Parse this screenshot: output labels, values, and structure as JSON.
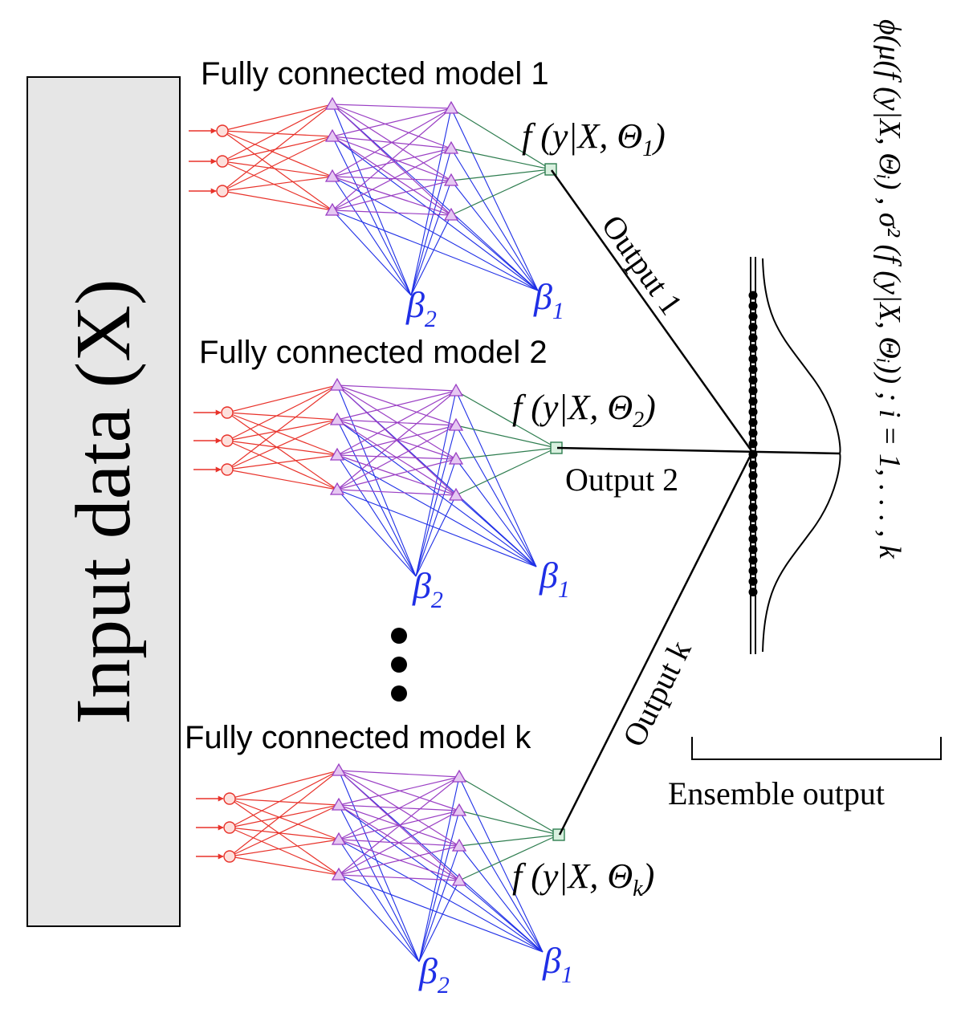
{
  "input_box": {
    "label": "Input data (X)",
    "fill": "#e6e6e6"
  },
  "colors": {
    "input_layer": "#e8322a",
    "hidden_layer": "#9a3fc4",
    "output_edges": "#2e7d4f",
    "bias_edges": "#1f2fe6",
    "bias_text": "#1f2fe6",
    "lines": "#000000"
  },
  "models": [
    {
      "title": "Fully connected model 1",
      "output_formula": {
        "prefix": "f (y|X, Θ",
        "subscript": "1",
        "suffix": ")"
      },
      "bias_labels": [
        {
          "symbol": "β",
          "subscript": "2"
        },
        {
          "symbol": "β",
          "subscript": "1"
        }
      ],
      "output_label": "Output 1"
    },
    {
      "title": "Fully connected model 2",
      "output_formula": {
        "prefix": "f (y|X, Θ",
        "subscript": "2",
        "suffix": ")"
      },
      "bias_labels": [
        {
          "symbol": "β",
          "subscript": "2"
        },
        {
          "symbol": "β",
          "subscript": "1"
        }
      ],
      "output_label": "Output 2"
    },
    {
      "title": "Fully connected model k",
      "output_formula": {
        "prefix": "f (y|X, Θ",
        "subscript": "k",
        "suffix": ")"
      },
      "bias_labels": [
        {
          "symbol": "β",
          "subscript": "2"
        },
        {
          "symbol": "β",
          "subscript": "1"
        }
      ],
      "output_label": "Output k"
    }
  ],
  "ensemble": {
    "label": "Ensemble output",
    "formula": "ϕ(μ(f (y|X, Θᵢ) , σ² (f (y|X, Θᵢ)) ; i = 1, . . . , k"
  }
}
